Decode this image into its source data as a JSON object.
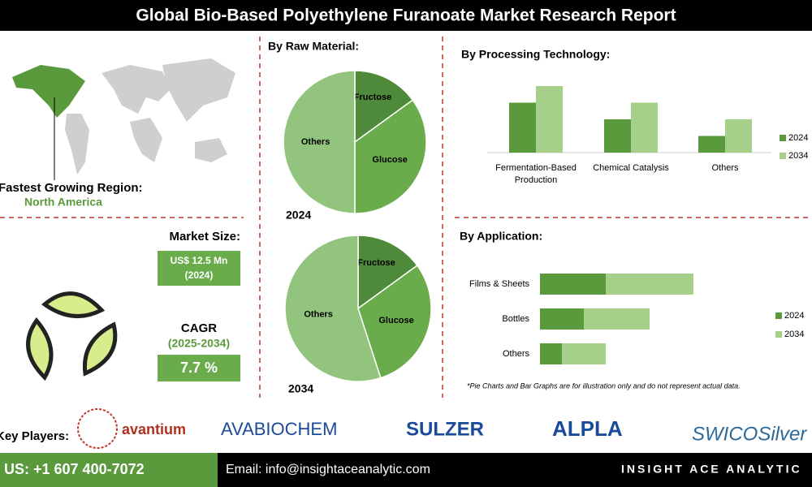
{
  "header": {
    "title": "Global Bio-Based Polyethylene Furanoate Market Research Report"
  },
  "region": {
    "label": "Fastest Growing Region:",
    "value": "North America"
  },
  "market_size": {
    "label": "Market Size:",
    "value": "US$ 12.5 Mn",
    "year": "(2024)"
  },
  "cagr": {
    "label": "CAGR",
    "period": "(2025-2034)",
    "value": "7.7 %"
  },
  "chart_data": [
    {
      "type": "pie",
      "title": "By Raw Material:",
      "subtitle": "2024",
      "categories": [
        "Fructose",
        "Glucose",
        "Others"
      ],
      "values": [
        15,
        35,
        50
      ],
      "colors": [
        "#4e8a3a",
        "#6aac4c",
        "#93c47d"
      ]
    },
    {
      "type": "pie",
      "subtitle": "2034",
      "categories": [
        "Fructose",
        "Glucose",
        "Others"
      ],
      "values": [
        15,
        30,
        55
      ],
      "colors": [
        "#4e8a3a",
        "#6aac4c",
        "#93c47d"
      ]
    },
    {
      "type": "bar",
      "title": "By  Processing Technology:",
      "categories": [
        "Fermentation-Based Production",
        "Chemical Catalysis",
        "Others"
      ],
      "series": [
        {
          "name": "2024",
          "color": "#5a9a3c",
          "values": [
            3,
            2,
            1
          ]
        },
        {
          "name": "2034",
          "color": "#a6d08a",
          "values": [
            4,
            3,
            2
          ]
        }
      ],
      "legend": "right"
    },
    {
      "type": "hbar-stacked",
      "title": "By Application:",
      "categories": [
        "Films & Sheets",
        "Bottles",
        "Others"
      ],
      "series": [
        {
          "name": "2024",
          "color": "#5a9a3c",
          "values": [
            3,
            2,
            1
          ]
        },
        {
          "name": "2034",
          "color": "#a6d08a",
          "values": [
            4,
            3,
            2
          ]
        }
      ],
      "legend": "right"
    }
  ],
  "note": "*Pie Charts and Bar Graphs are for illustration only and do not represent actual data.",
  "key_players": {
    "label": "Key Players:",
    "names": [
      "avantium",
      "AVABIOCHEM",
      "SULZER",
      "ALPLA",
      "SWICOSilver"
    ]
  },
  "footer": {
    "phone": "US: +1 607 400-7072",
    "email": "Email: info@insightaceanalytic.com",
    "brand": "INSIGHT ACE ANALYTIC"
  }
}
